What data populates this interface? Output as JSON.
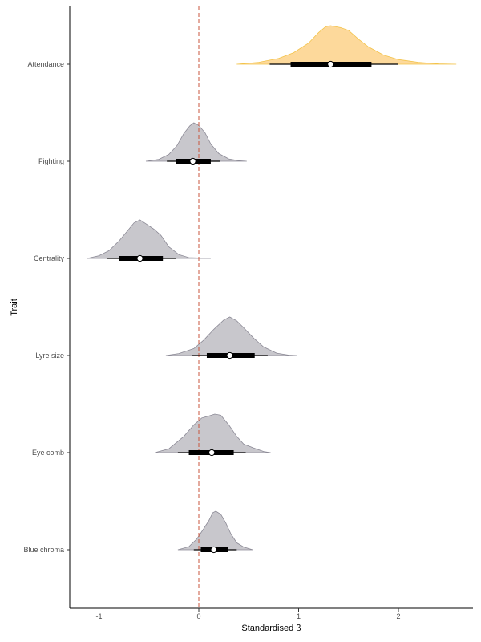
{
  "chart_data": {
    "type": "halfeye",
    "title": "",
    "xlabel": "Standardised β",
    "ylabel": "Trait",
    "xlim": [
      -1.3,
      2.75
    ],
    "x_ticks": [
      -1,
      0,
      1,
      2
    ],
    "x_tick_labels": [
      "-1",
      "0",
      "1",
      "2"
    ],
    "reference_line_x": 0,
    "grid": false,
    "legend": "none",
    "colors": {
      "highlight_fill": "#fdd99b",
      "highlight_stroke": "#f3c34a",
      "default_fill": "#c8c7cc",
      "default_stroke": "#8c8a96",
      "reference_line": "#c8553d",
      "interval": "#000000",
      "point_fill": "#ffffff"
    },
    "categories": [
      "Attendance",
      "Fighting",
      "Centrality",
      "Lyre size",
      "Eye comb",
      "Blue chroma"
    ],
    "series": [
      {
        "category": "Attendance",
        "highlight": true,
        "median": 1.32,
        "interval_66": [
          0.92,
          1.73
        ],
        "interval_95": [
          0.71,
          2.0
        ],
        "range": [
          0.38,
          2.58
        ],
        "density": [
          [
            0.38,
            0.0
          ],
          [
            0.6,
            0.05
          ],
          [
            0.8,
            0.15
          ],
          [
            0.95,
            0.3
          ],
          [
            1.1,
            0.55
          ],
          [
            1.2,
            0.82
          ],
          [
            1.27,
            0.97
          ],
          [
            1.32,
            1.0
          ],
          [
            1.42,
            0.95
          ],
          [
            1.5,
            0.88
          ],
          [
            1.6,
            0.65
          ],
          [
            1.7,
            0.45
          ],
          [
            1.85,
            0.24
          ],
          [
            2.0,
            0.12
          ],
          [
            2.2,
            0.05
          ],
          [
            2.4,
            0.01
          ],
          [
            2.58,
            0.0
          ]
        ]
      },
      {
        "category": "Fighting",
        "highlight": false,
        "median": -0.06,
        "interval_66": [
          -0.23,
          0.12
        ],
        "interval_95": [
          -0.32,
          0.21
        ],
        "range": [
          -0.53,
          0.48
        ],
        "density": [
          [
            -0.53,
            0.0
          ],
          [
            -0.4,
            0.05
          ],
          [
            -0.3,
            0.18
          ],
          [
            -0.22,
            0.4
          ],
          [
            -0.15,
            0.72
          ],
          [
            -0.09,
            0.92
          ],
          [
            -0.05,
            1.0
          ],
          [
            0.0,
            0.93
          ],
          [
            0.06,
            0.75
          ],
          [
            0.12,
            0.45
          ],
          [
            0.2,
            0.2
          ],
          [
            0.3,
            0.06
          ],
          [
            0.4,
            0.015
          ],
          [
            0.48,
            0.0
          ]
        ]
      },
      {
        "category": "Centrality",
        "highlight": false,
        "median": -0.59,
        "interval_66": [
          -0.8,
          -0.36
        ],
        "interval_95": [
          -0.92,
          -0.23
        ],
        "range": [
          -1.12,
          0.12
        ],
        "density": [
          [
            -1.12,
            0.0
          ],
          [
            -1.0,
            0.07
          ],
          [
            -0.9,
            0.2
          ],
          [
            -0.8,
            0.45
          ],
          [
            -0.72,
            0.7
          ],
          [
            -0.65,
            0.92
          ],
          [
            -0.59,
            1.0
          ],
          [
            -0.53,
            0.9
          ],
          [
            -0.45,
            0.76
          ],
          [
            -0.38,
            0.6
          ],
          [
            -0.3,
            0.3
          ],
          [
            -0.2,
            0.1
          ],
          [
            -0.1,
            0.02
          ],
          [
            0.12,
            0.0
          ]
        ]
      },
      {
        "category": "Lyre size",
        "highlight": false,
        "median": 0.31,
        "interval_66": [
          0.08,
          0.56
        ],
        "interval_95": [
          -0.07,
          0.69
        ],
        "range": [
          -0.33,
          0.98
        ],
        "density": [
          [
            -0.33,
            0.0
          ],
          [
            -0.2,
            0.05
          ],
          [
            -0.05,
            0.18
          ],
          [
            0.05,
            0.4
          ],
          [
            0.15,
            0.68
          ],
          [
            0.25,
            0.92
          ],
          [
            0.31,
            1.0
          ],
          [
            0.38,
            0.9
          ],
          [
            0.45,
            0.72
          ],
          [
            0.55,
            0.45
          ],
          [
            0.65,
            0.22
          ],
          [
            0.78,
            0.06
          ],
          [
            0.9,
            0.01
          ],
          [
            0.98,
            0.0
          ]
        ]
      },
      {
        "category": "Eye comb",
        "highlight": false,
        "median": 0.13,
        "interval_66": [
          -0.1,
          0.35
        ],
        "interval_95": [
          -0.21,
          0.47
        ],
        "range": [
          -0.44,
          0.72
        ],
        "density": [
          [
            -0.44,
            0.0
          ],
          [
            -0.3,
            0.1
          ],
          [
            -0.15,
            0.42
          ],
          [
            -0.05,
            0.72
          ],
          [
            0.03,
            0.9
          ],
          [
            0.1,
            0.95
          ],
          [
            0.16,
            1.0
          ],
          [
            0.22,
            0.97
          ],
          [
            0.3,
            0.72
          ],
          [
            0.38,
            0.42
          ],
          [
            0.45,
            0.22
          ],
          [
            0.55,
            0.12
          ],
          [
            0.65,
            0.03
          ],
          [
            0.72,
            0.0
          ]
        ]
      },
      {
        "category": "Blue chroma",
        "highlight": false,
        "median": 0.15,
        "interval_66": [
          0.02,
          0.29
        ],
        "interval_95": [
          -0.05,
          0.38
        ],
        "range": [
          -0.21,
          0.54
        ],
        "density": [
          [
            -0.21,
            0.0
          ],
          [
            -0.1,
            0.08
          ],
          [
            -0.02,
            0.28
          ],
          [
            0.05,
            0.55
          ],
          [
            0.1,
            0.75
          ],
          [
            0.14,
            0.96
          ],
          [
            0.17,
            1.0
          ],
          [
            0.22,
            0.92
          ],
          [
            0.27,
            0.7
          ],
          [
            0.32,
            0.42
          ],
          [
            0.38,
            0.18
          ],
          [
            0.45,
            0.07
          ],
          [
            0.54,
            0.0
          ]
        ]
      }
    ]
  }
}
